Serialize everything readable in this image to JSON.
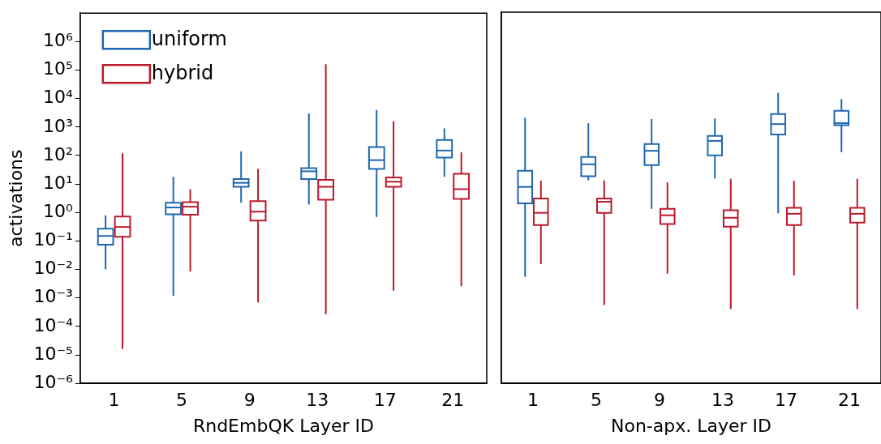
{
  "chart_data": [
    {
      "type": "box",
      "xlabel": "RndEmbQK Layer ID",
      "ylabel": "activations",
      "categories": [
        "1",
        "5",
        "9",
        "13",
        "17",
        "21"
      ],
      "log": "y",
      "ylim": [
        1e-06,
        10000000.0
      ],
      "yticks": [
        {
          "value": 1e-06,
          "label": "10⁻⁶"
        },
        {
          "value": 1e-05,
          "label": "10⁻⁵"
        },
        {
          "value": 0.0001,
          "label": "10⁻⁴"
        },
        {
          "value": 0.001,
          "label": "10⁻³"
        },
        {
          "value": 0.01,
          "label": "10⁻²"
        },
        {
          "value": 0.1,
          "label": "10⁻¹"
        },
        {
          "value": 1,
          "label": "10⁰"
        },
        {
          "value": 10,
          "label": "10¹"
        },
        {
          "value": 100,
          "label": "10²"
        },
        {
          "value": 1000,
          "label": "10³"
        },
        {
          "value": 10000,
          "label": "10⁴"
        },
        {
          "value": 100000,
          "label": "10⁵"
        },
        {
          "value": 1000000,
          "label": "10⁶"
        }
      ],
      "legend": "top left",
      "grid": false,
      "series": [
        {
          "name": "uniform",
          "color": "#1f68b0",
          "boxes": [
            {
              "low": 0.01,
              "q1": 0.074,
              "median": 0.15,
              "q3": 0.27,
              "high": 0.8
            },
            {
              "low": 0.0012,
              "q1": 0.87,
              "median": 1.5,
              "q3": 2.2,
              "high": 18
            },
            {
              "low": 2.2,
              "q1": 8,
              "median": 11,
              "q3": 15,
              "high": 140
            },
            {
              "low": 1.9,
              "q1": 15,
              "median": 28,
              "q3": 36,
              "high": 3000
            },
            {
              "low": 0.7,
              "q1": 34,
              "median": 69,
              "q3": 200,
              "high": 4000
            },
            {
              "low": 18,
              "q1": 85,
              "median": 150,
              "q3": 350,
              "high": 900
            }
          ]
        },
        {
          "name": "hybrid",
          "color": "#bb1a2c",
          "boxes": [
            {
              "low": 1.6e-05,
              "q1": 0.14,
              "median": 0.31,
              "q3": 0.72,
              "high": 120
            },
            {
              "low": 0.0085,
              "q1": 0.83,
              "median": 1.6,
              "q3": 2.3,
              "high": 6.6
            },
            {
              "low": 0.0007,
              "q1": 0.52,
              "median": 1.07,
              "q3": 2.5,
              "high": 34
            },
            {
              "low": 0.00027,
              "q1": 2.8,
              "median": 8,
              "q3": 14,
              "high": 160000
            },
            {
              "low": 0.0018,
              "q1": 8,
              "median": 12,
              "q3": 17,
              "high": 1600
            },
            {
              "low": 0.0026,
              "q1": 3,
              "median": 6.6,
              "q3": 23,
              "high": 130
            }
          ]
        }
      ]
    },
    {
      "type": "box",
      "xlabel": "Non-apx. Layer ID",
      "categories": [
        "1",
        "5",
        "9",
        "13",
        "17",
        "21"
      ],
      "log": "y",
      "ylim": [
        1e-06,
        10000000.0
      ],
      "tick_labels": "x",
      "yticks": [
        {
          "value": 1e-06,
          "label": null
        },
        {
          "value": 1e-05,
          "label": null
        },
        {
          "value": 0.0001,
          "label": null
        },
        {
          "value": 0.001,
          "label": null
        },
        {
          "value": 0.01,
          "label": null
        },
        {
          "value": 0.1,
          "label": null
        },
        {
          "value": 1,
          "label": null
        },
        {
          "value": 10,
          "label": null
        },
        {
          "value": 100,
          "label": null
        },
        {
          "value": 1000,
          "label": null
        },
        {
          "value": 10000,
          "label": null
        },
        {
          "value": 100000,
          "label": null
        },
        {
          "value": 1000000,
          "label": null
        }
      ],
      "grid": false,
      "series": [
        {
          "color": "#1f68b0",
          "boxes": [
            {
              "low": 0.0054,
              "q1": 2,
              "median": 7.6,
              "q3": 28,
              "high": 2000
            },
            {
              "low": 13,
              "q1": 18,
              "median": 47,
              "q3": 85,
              "high": 1300
            },
            {
              "low": 1.3,
              "q1": 44,
              "median": 140,
              "q3": 240,
              "high": 1800
            },
            {
              "low": 15,
              "q1": 96,
              "median": 310,
              "q3": 460,
              "high": 1900
            },
            {
              "low": 0.9,
              "q1": 520,
              "median": 1200,
              "q3": 2700,
              "high": 15000
            },
            {
              "low": 125,
              "q1": 1100,
              "median": 1300,
              "q3": 3500,
              "high": 9000
            }
          ]
        },
        {
          "color": "#bb1a2c",
          "boxes": [
            {
              "low": 0.015,
              "q1": 0.35,
              "median": 0.94,
              "q3": 3,
              "high": 12.6
            },
            {
              "low": 0.00055,
              "q1": 0.94,
              "median": 2.3,
              "q3": 3,
              "high": 13
            },
            {
              "low": 0.007,
              "q1": 0.38,
              "median": 0.77,
              "q3": 1.3,
              "high": 11
            },
            {
              "low": 0.0004,
              "q1": 0.31,
              "median": 0.63,
              "q3": 1.15,
              "high": 14.5
            },
            {
              "low": 0.006,
              "q1": 0.35,
              "median": 0.87,
              "q3": 1.4,
              "high": 12.6
            },
            {
              "low": 0.0004,
              "q1": 0.43,
              "median": 0.87,
              "q3": 1.4,
              "high": 14.5
            }
          ]
        }
      ]
    }
  ]
}
